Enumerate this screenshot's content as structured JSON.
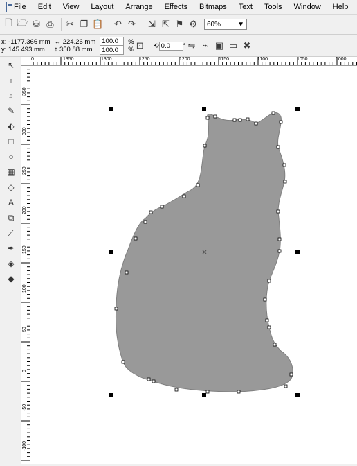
{
  "menu": [
    "File",
    "Edit",
    "View",
    "Layout",
    "Arrange",
    "Effects",
    "Bitmaps",
    "Text",
    "Tools",
    "Window",
    "Help"
  ],
  "toolbar": {
    "zoom": "60%",
    "icons": [
      "new-icon",
      "open-icon",
      "save-icon",
      "print-icon",
      "cut-icon",
      "copy-icon",
      "paste-icon",
      "undo-icon",
      "redo-icon",
      "import-icon",
      "export-icon",
      "launcher-icon",
      "snap-icon"
    ]
  },
  "properties": {
    "x": "x: -1177.366 mm",
    "y": "y: 145.493 mm",
    "width": "224.26 mm",
    "height": "350.88 mm",
    "scale_x": "100.0",
    "scale_y": "100.0",
    "percent": "%",
    "rotation": "0.0",
    "degree": "°"
  },
  "ruler_top_labels": [
    "0",
    "1350",
    "1300",
    "1250",
    "1200",
    "1150",
    "1100",
    "1050",
    "1000"
  ],
  "ruler_left_labels": [
    "350",
    "300",
    "250",
    "200",
    "150",
    "100",
    "50",
    "0",
    "-50",
    "-100"
  ],
  "tools": [
    "pick-tool-icon",
    "shape-tool-icon",
    "zoom-tool-icon",
    "freehand-tool-icon",
    "smart-fill-icon",
    "rectangle-tool-icon",
    "ellipse-tool-icon",
    "polygon-tool-icon",
    "basic-shapes-icon",
    "text-tool-icon",
    "interactive-blend-icon",
    "eyedropper-icon",
    "outline-pen-icon",
    "fill-tool-icon",
    "interactive-fill-icon"
  ],
  "colors": {
    "shape_fill": "#999999",
    "handle": "#000000"
  }
}
